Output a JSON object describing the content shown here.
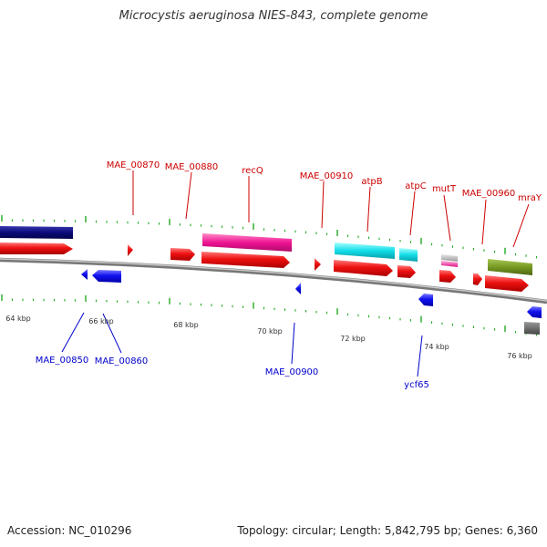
{
  "title": "Microcystis aeruginosa NIES-843, complete genome",
  "footer": {
    "accession": "Accession: NC_010296",
    "topology": "Topology: circular; Length: 5,842,795 bp; Genes: 6,360"
  },
  "colors": {
    "forward_gene": "#ee1111",
    "reverse_gene": "#1111ee",
    "forward_label": "#cc0000",
    "reverse_label": "#0000cc",
    "backbone": "#888888",
    "ticks": "#22aa22",
    "navy_band": "#0a0a7a",
    "magenta_band": "#ee1493",
    "cyan_band": "#11dde8",
    "olive_band": "#779922",
    "gray_band": "#bbbbbb"
  },
  "ruler_ticks": [
    "64 kbp",
    "66 kbp",
    "68 kbp",
    "70 kbp",
    "72 kbp",
    "74 kbp",
    "76 kbp"
  ],
  "genes_forward": [
    {
      "name": "MAE_00870"
    },
    {
      "name": "MAE_00880"
    },
    {
      "name": "recQ"
    },
    {
      "name": "MAE_00910"
    },
    {
      "name": "atpB"
    },
    {
      "name": "atpC"
    },
    {
      "name": "mutT"
    },
    {
      "name": "MAE_00960"
    },
    {
      "name": "mraY"
    }
  ],
  "genes_reverse": [
    {
      "name": "MAE_00850"
    },
    {
      "name": "MAE_00860"
    },
    {
      "name": "MAE_00900"
    },
    {
      "name": "ycf65"
    }
  ]
}
